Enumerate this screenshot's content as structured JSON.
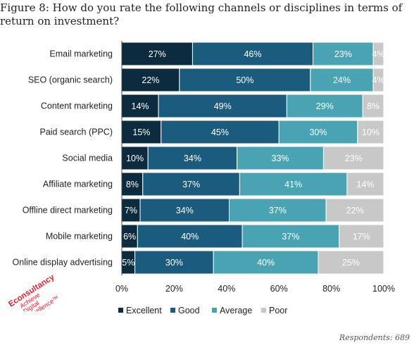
{
  "figure_title": "Figure 8: How do you rate the following channels or disciplines in terms of return on investment?",
  "respondents": "Respondents: 689",
  "logo": {
    "name": "Econsultancy",
    "line1": "Achieve",
    "line2": "Digital",
    "line3": "Excellence™",
    "color": "#e0202e"
  },
  "chart_data": {
    "type": "bar",
    "orientation": "horizontal",
    "stacked": true,
    "categories": [
      "Email marketing",
      "SEO (organic search)",
      "Content marketing",
      "Paid search (PPC)",
      "Social media",
      "Affiliate marketing",
      "Offline direct marketing",
      "Mobile marketing",
      "Online display advertising"
    ],
    "series": [
      {
        "name": "Excellent",
        "color": "#0d2b3e",
        "values": [
          27,
          22,
          14,
          15,
          10,
          8,
          7,
          6,
          5
        ],
        "labels": [
          "27%",
          "22%",
          "14%",
          "15%",
          "10%",
          "8%",
          "7%",
          "6%",
          "5%"
        ]
      },
      {
        "name": "Good",
        "color": "#1b5b7e",
        "values": [
          46,
          50,
          49,
          45,
          34,
          37,
          34,
          40,
          30
        ],
        "labels": [
          "46%",
          "50%",
          "49%",
          "45%",
          "34%",
          "37%",
          "34%",
          "40%",
          "30%"
        ]
      },
      {
        "name": "Average",
        "color": "#4aa3b3",
        "values": [
          23,
          24,
          29,
          30,
          33,
          41,
          37,
          37,
          40
        ],
        "labels": [
          "23%",
          "24%",
          "29%",
          "30%",
          "33%",
          "41%",
          "37%",
          "37%",
          "40%"
        ]
      },
      {
        "name": "Poor",
        "color": "#c8c8c8",
        "values": [
          4,
          4,
          8,
          10,
          23,
          14,
          22,
          17,
          25
        ],
        "labels": [
          "4%",
          "4%",
          "8%",
          "10%",
          "23%",
          "14%",
          "22%",
          "17%",
          "25%"
        ]
      }
    ],
    "xlim": [
      0,
      100
    ],
    "xticks": [
      "0%",
      "20%",
      "40%",
      "60%",
      "80%",
      "100%"
    ],
    "xlabel": "",
    "ylabel": "",
    "grid": false,
    "legend": "bottom"
  }
}
